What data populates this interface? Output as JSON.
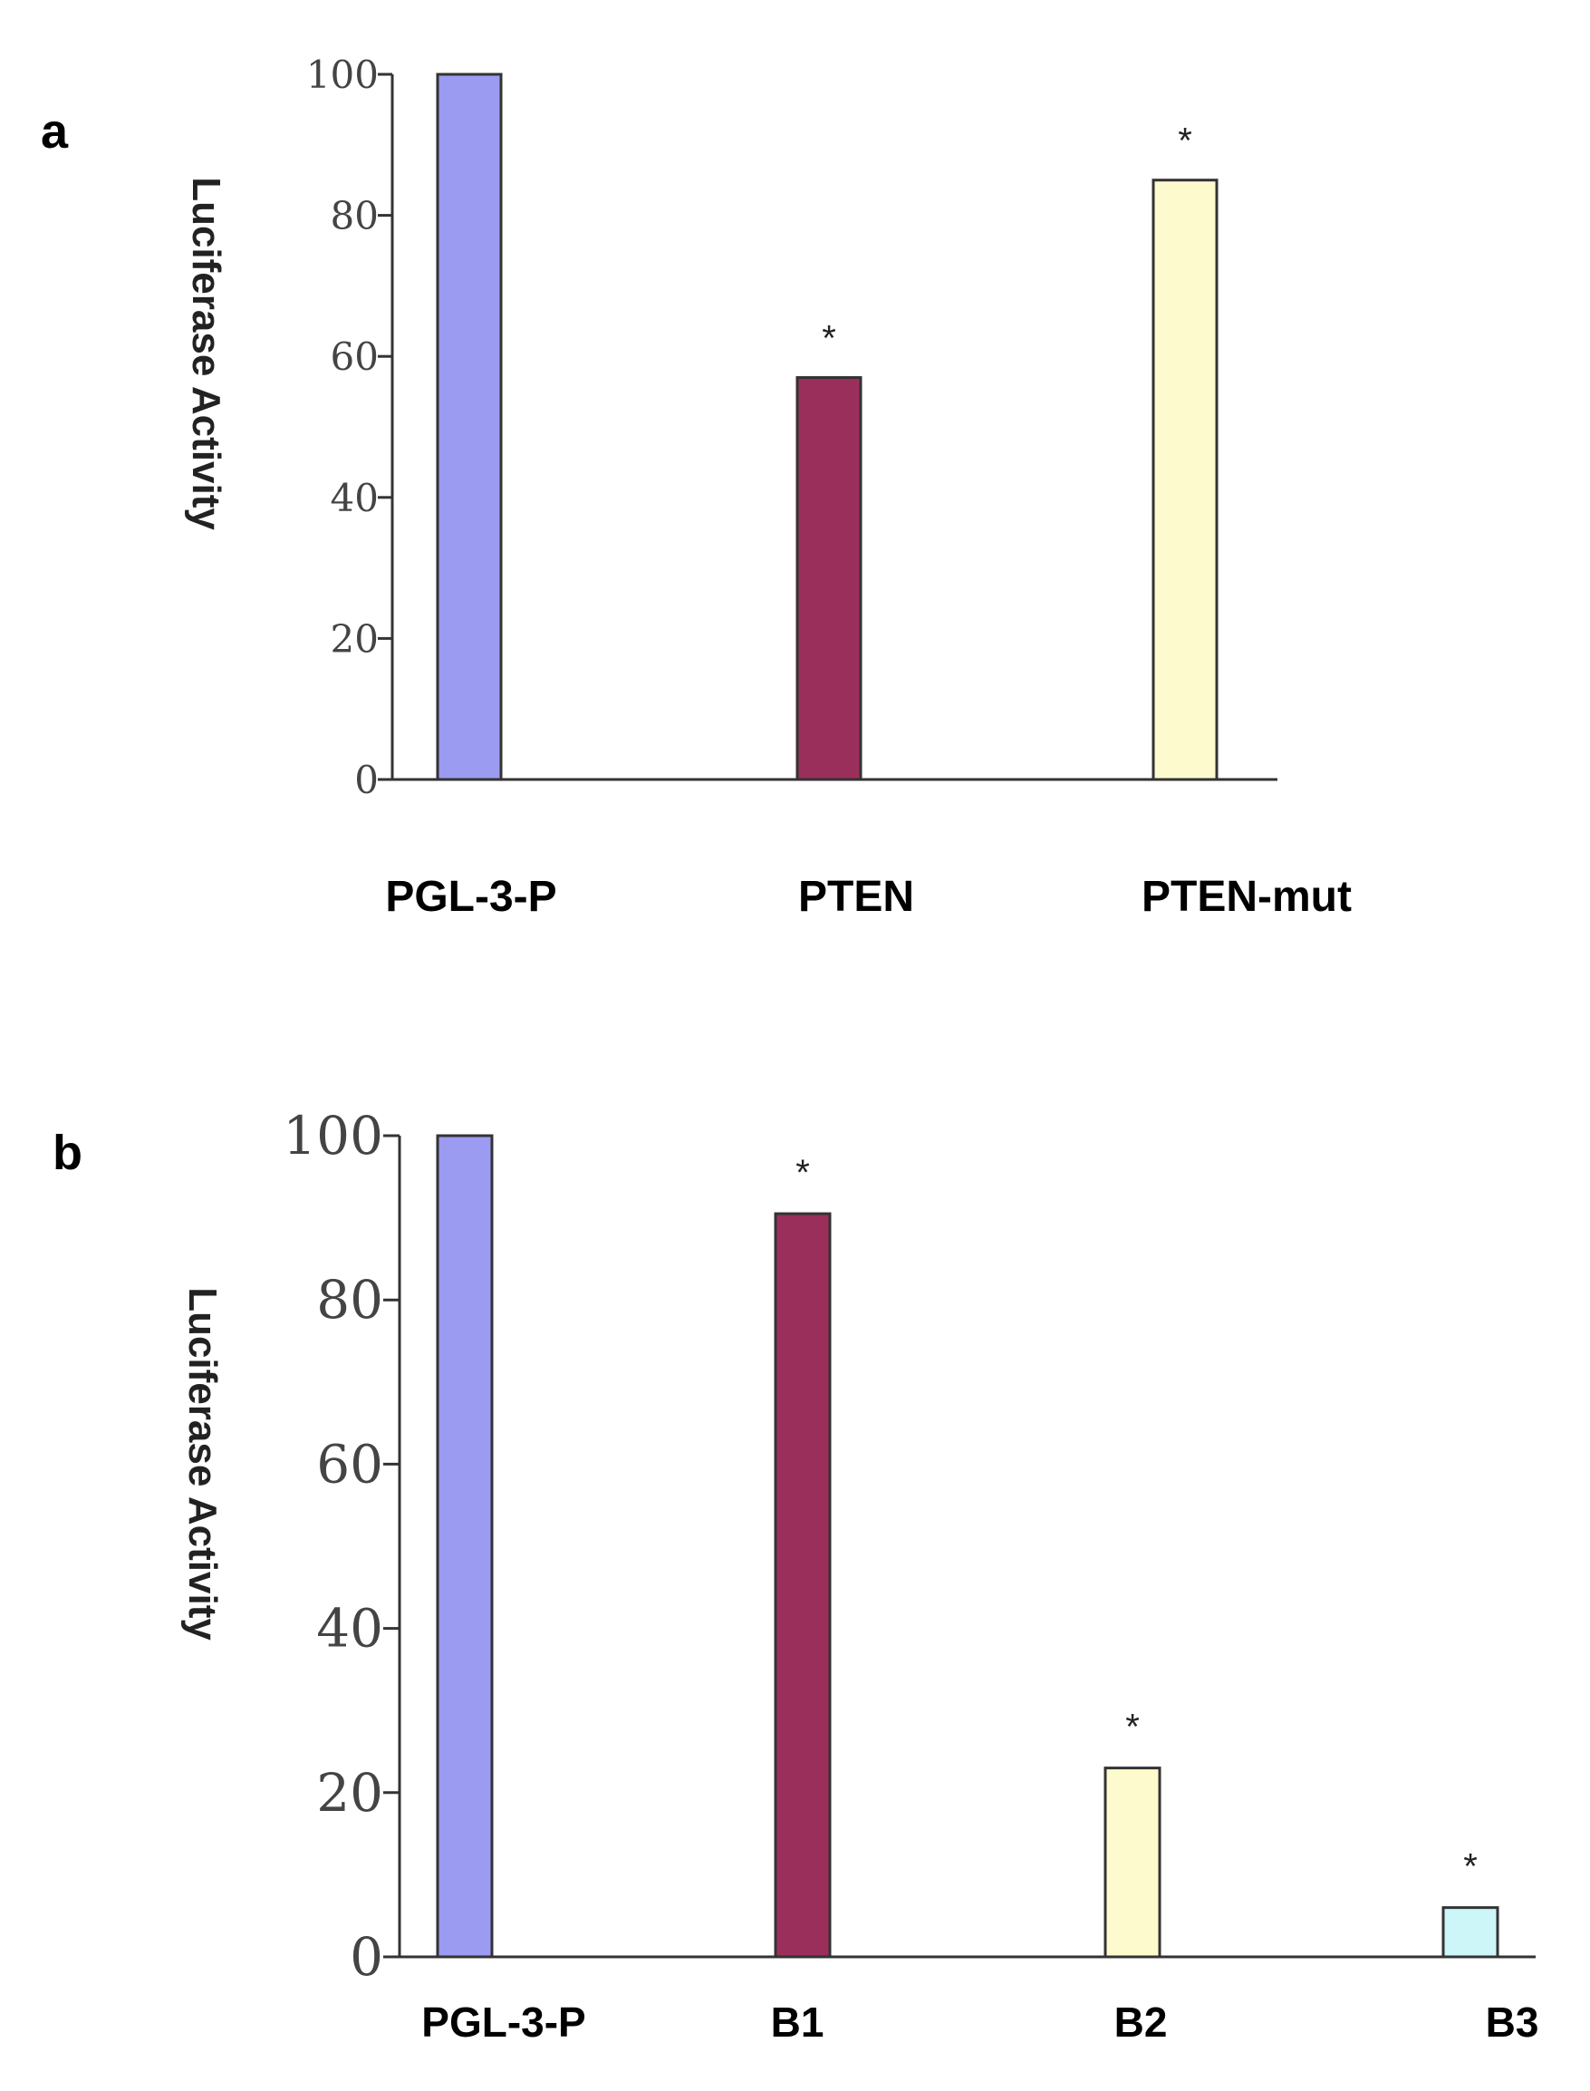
{
  "chart_data": [
    {
      "type": "bar",
      "panel": "a",
      "categories": [
        "PGL-3-P",
        "PTEN",
        "PTEN-mut"
      ],
      "values": [
        100,
        57,
        85
      ],
      "colors": [
        "#9b9bf2",
        "#9b2f5c",
        "#fdfbcd"
      ],
      "significance": [
        "",
        "*",
        "*"
      ],
      "ylabel": "Luciferase Activity",
      "ylim": [
        0,
        100
      ],
      "yticks": [
        "0",
        "20",
        "40",
        "60",
        "80",
        "100"
      ],
      "grid": false
    },
    {
      "type": "bar",
      "panel": "b",
      "categories": [
        "PGL-3-P",
        "B1",
        "B2",
        "B3"
      ],
      "values": [
        100,
        90.5,
        23,
        6
      ],
      "colors": [
        "#9b9bf2",
        "#9b2f5c",
        "#fdfbcd",
        "#ccf6f8"
      ],
      "significance": [
        "",
        "*",
        "*",
        "*"
      ],
      "ylabel": "Luciferase Activity",
      "ylim": [
        0,
        100
      ],
      "yticks": [
        "0",
        "20",
        "40",
        "60",
        "80",
        "100"
      ],
      "grid": false
    }
  ]
}
